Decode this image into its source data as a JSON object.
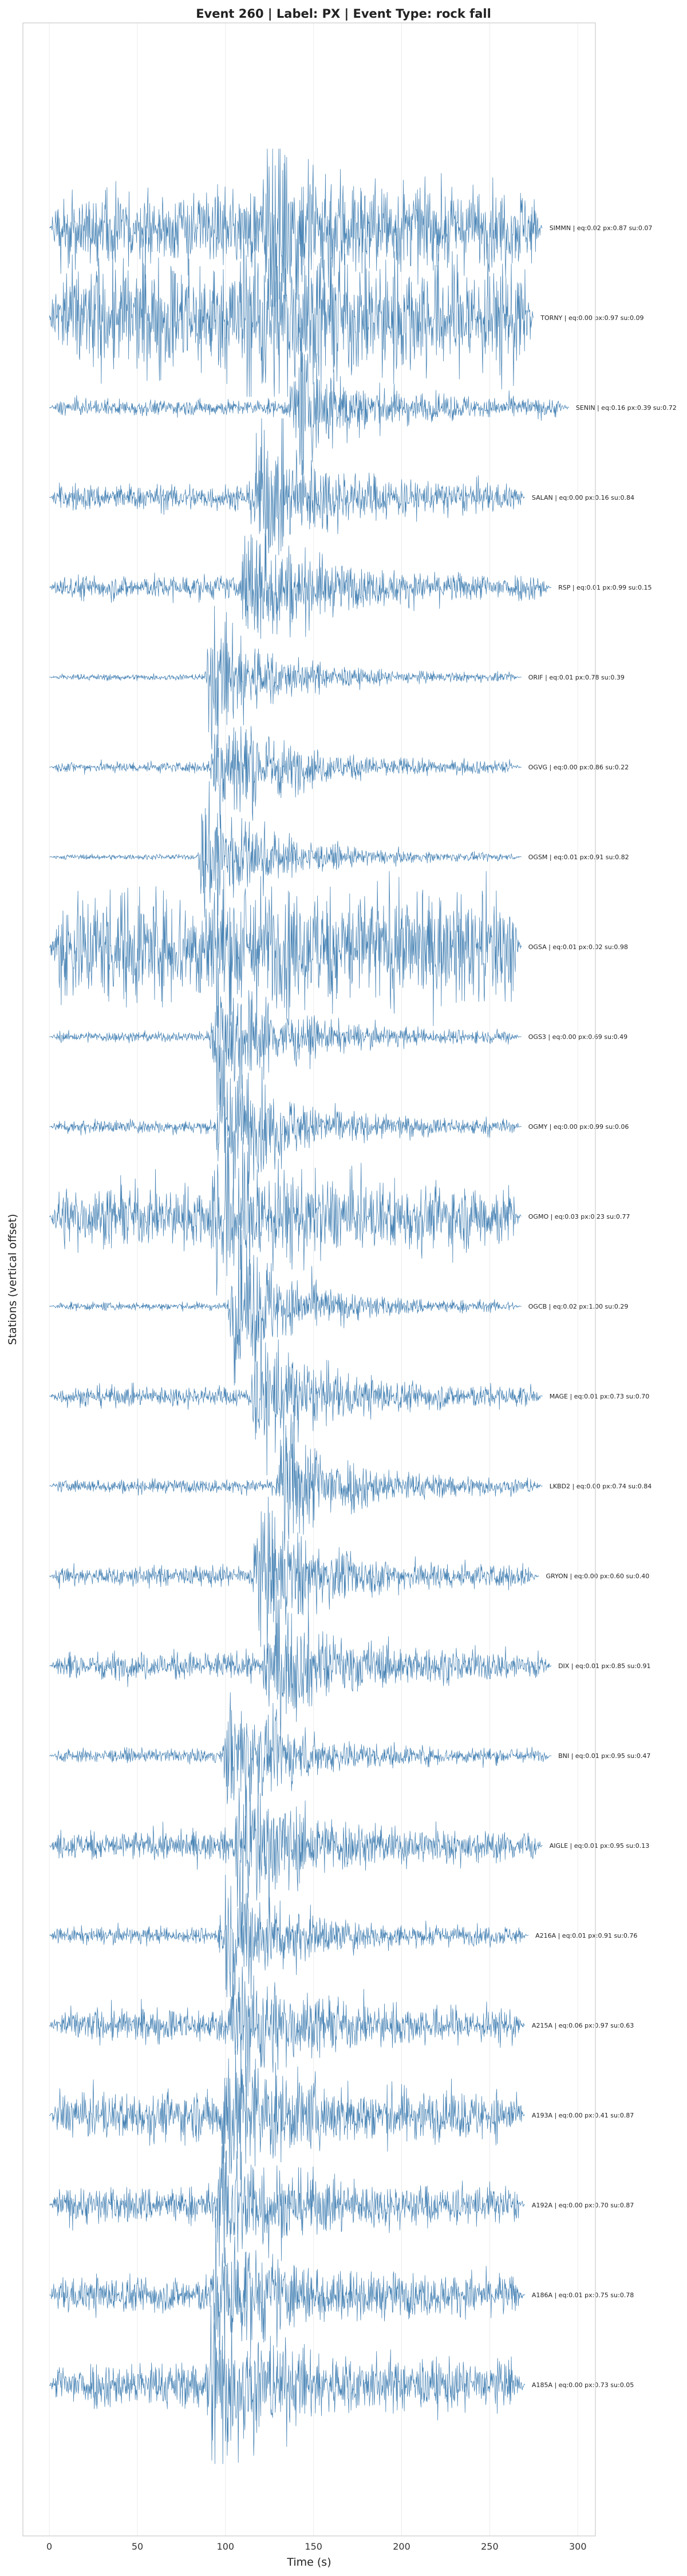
{
  "chart_data": {
    "type": "line",
    "title": "Event 260 | Label: PX | Event Type: rock fall",
    "xlabel": "Time (s)",
    "ylabel": "Stations (vertical offset)",
    "xlim": [
      -15,
      310
    ],
    "xticks": [
      0,
      50,
      100,
      150,
      200,
      250,
      300
    ],
    "grid": true,
    "line_color": "#4682b4",
    "series": [
      {
        "name": "SIMMN | eq:0.02 px:0.87 su:0.07",
        "duration": 280,
        "amplitude": 0.55,
        "onset": 125,
        "burst": 0.95
      },
      {
        "name": "TORNY | eq:0.00 px:0.97 su:0.09",
        "duration": 275,
        "amplitude": 0.85,
        "onset": 110,
        "burst": 0.45
      },
      {
        "name": "SENIN | eq:0.16 px:0.39 su:0.72",
        "duration": 295,
        "amplitude": 0.12,
        "onset": 140,
        "burst": 0.75
      },
      {
        "name": "SALAN | eq:0.00 px:0.16 su:0.84",
        "duration": 270,
        "amplitude": 0.2,
        "onset": 118,
        "burst": 0.85
      },
      {
        "name": "RSP | eq:0.01 px:0.99 su:0.15",
        "duration": 285,
        "amplitude": 0.18,
        "onset": 112,
        "burst": 0.8
      },
      {
        "name": "ORIF | eq:0.01 px:0.78 su:0.39",
        "duration": 268,
        "amplitude": 0.05,
        "onset": 92,
        "burst": 0.85
      },
      {
        "name": "OGVG | eq:0.00 px:0.86 su:0.22",
        "duration": 268,
        "amplitude": 0.08,
        "onset": 95,
        "burst": 0.9
      },
      {
        "name": "OGSM | eq:0.01 px:0.91 su:0.82",
        "duration": 268,
        "amplitude": 0.04,
        "onset": 88,
        "burst": 0.95
      },
      {
        "name": "OGSA | eq:0.01 px:0.02 su:0.98",
        "duration": 268,
        "amplitude": 0.85,
        "onset": 95,
        "burst": 0.3
      },
      {
        "name": "OGS3 | eq:0.00 px:0.69 su:0.49",
        "duration": 268,
        "amplitude": 0.08,
        "onset": 95,
        "burst": 0.9
      },
      {
        "name": "OGMY | eq:0.00 px:0.99 su:0.06",
        "duration": 268,
        "amplitude": 0.1,
        "onset": 98,
        "burst": 0.95
      },
      {
        "name": "OGMO | eq:0.03 px:0.23 su:0.77",
        "duration": 268,
        "amplitude": 0.45,
        "onset": 95,
        "burst": 0.75
      },
      {
        "name": "OGCB | eq:0.02 px:1.00 su:0.29",
        "duration": 268,
        "amplitude": 0.06,
        "onset": 105,
        "burst": 0.95
      },
      {
        "name": "MAGE | eq:0.01 px:0.73 su:0.70",
        "duration": 280,
        "amplitude": 0.15,
        "onset": 118,
        "burst": 0.8
      },
      {
        "name": "LKBD2 | eq:0.00 px:0.74 su:0.84",
        "duration": 280,
        "amplitude": 0.1,
        "onset": 132,
        "burst": 0.85
      },
      {
        "name": "GRYON | eq:0.00 px:0.60 su:0.40",
        "duration": 278,
        "amplitude": 0.15,
        "onset": 118,
        "burst": 0.85
      },
      {
        "name": "DIX | eq:0.01 px:0.85 su:0.91",
        "duration": 285,
        "amplitude": 0.2,
        "onset": 125,
        "burst": 0.75
      },
      {
        "name": "BNI | eq:0.01 px:0.95 su:0.47",
        "duration": 285,
        "amplitude": 0.1,
        "onset": 102,
        "burst": 0.8
      },
      {
        "name": "AIGLE | eq:0.01 px:0.95 su:0.13",
        "duration": 280,
        "amplitude": 0.22,
        "onset": 108,
        "burst": 0.85
      },
      {
        "name": "A216A | eq:0.01 px:0.91 su:0.76",
        "duration": 272,
        "amplitude": 0.12,
        "onset": 100,
        "burst": 0.85
      },
      {
        "name": "A215A | eq:0.06 px:0.97 su:0.63",
        "duration": 270,
        "amplitude": 0.25,
        "onset": 105,
        "burst": 0.7
      },
      {
        "name": "A193A | eq:0.00 px:0.41 su:0.87",
        "duration": 270,
        "amplitude": 0.35,
        "onset": 100,
        "burst": 0.75
      },
      {
        "name": "A192A | eq:0.00 px:0.70 su:0.87",
        "duration": 270,
        "amplitude": 0.28,
        "onset": 98,
        "burst": 0.75
      },
      {
        "name": "A186A | eq:0.01 px:0.75 su:0.78",
        "duration": 270,
        "amplitude": 0.28,
        "onset": 95,
        "burst": 0.75
      },
      {
        "name": "A185A | eq:0.00 px:0.73 su:0.05",
        "duration": 270,
        "amplitude": 0.35,
        "onset": 92,
        "burst": 0.9
      }
    ]
  }
}
